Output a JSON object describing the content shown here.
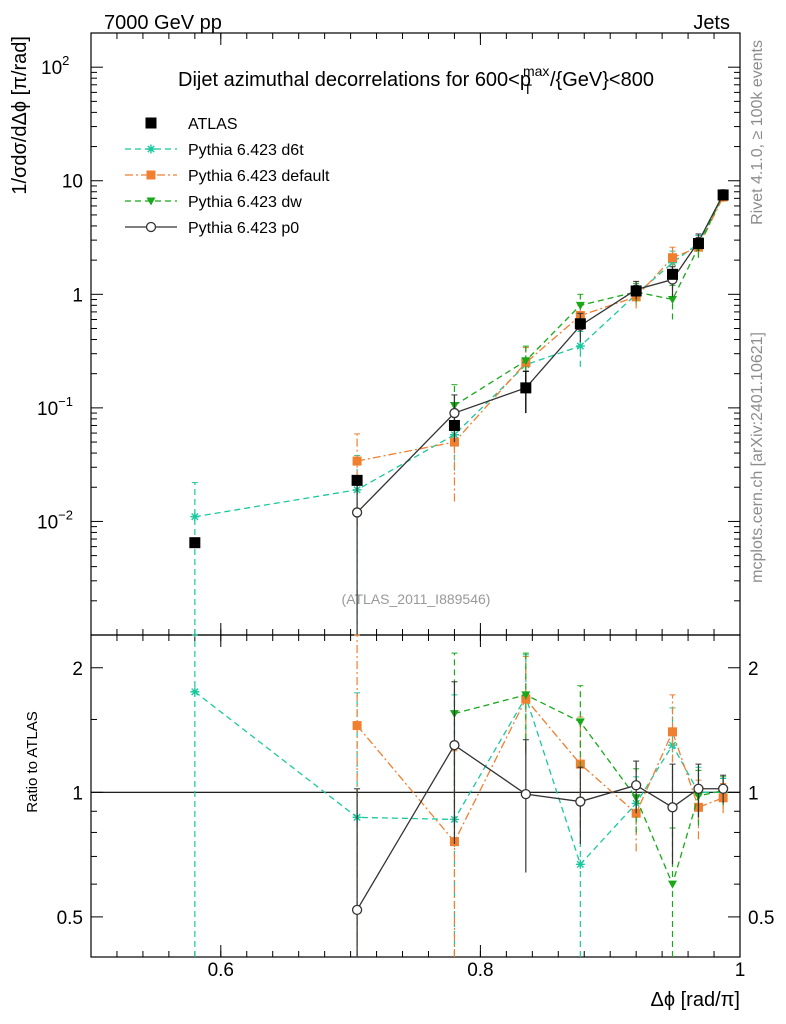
{
  "header": {
    "left": "7000 GeV pp",
    "right": "Jets"
  },
  "side_labels": {
    "rivet": "Rivet 4.1.0, ≥ 100k events",
    "mcplots": "mcplots.cern.ch [arXiv:2401.10621]"
  },
  "chart_data": {
    "type": "line",
    "title": "Dijet azimuthal decorrelations for 600<p_T^max/{GeV}<800",
    "title_parts": {
      "main": "Dijet azimuthal decorrelations for 600<p",
      "sup": "max",
      "sub": "T",
      "tail": "/{GeV}<800"
    },
    "analysis_label": "(ATLAS_2011_I889546)",
    "xlabel": "Δϕ [rad/π]",
    "ylabel": "1/σdσ/dΔϕ [π/rad]",
    "ratio_ylabel": "Ratio to ATLAS",
    "xlim": [
      0.5,
      1.0
    ],
    "ylim": [
      0.001,
      200
    ],
    "yscale": "log",
    "ratio_ylim": [
      0.4,
      2.4
    ],
    "ratio_yscale": "log",
    "x_ticks": [
      {
        "value": 0.6,
        "label": "0.6"
      },
      {
        "value": 0.8,
        "label": "0.8"
      },
      {
        "value": 1.0,
        "label": "1"
      }
    ],
    "y_ticks": [
      {
        "value": 0.01,
        "base": "10",
        "exp": "−2"
      },
      {
        "value": 0.1,
        "base": "10",
        "exp": "−1"
      },
      {
        "value": 1,
        "base": "1",
        "exp": ""
      },
      {
        "value": 10,
        "base": "10",
        "exp": ""
      },
      {
        "value": 100,
        "base": "10",
        "exp": "2"
      }
    ],
    "ratio_ticks": [
      {
        "value": 0.5,
        "label": "0.5"
      },
      {
        "value": 1,
        "label": "1"
      },
      {
        "value": 2,
        "label": "2"
      }
    ],
    "x": [
      0.58,
      0.705,
      0.78,
      0.835,
      0.877,
      0.92,
      0.948,
      0.968,
      0.987
    ],
    "series": [
      {
        "name": "ATLAS",
        "color": "#000000",
        "marker": "square",
        "line": "none",
        "values": [
          0.0065,
          0.023,
          0.07,
          0.15,
          0.55,
          1.07,
          1.5,
          2.8,
          7.5
        ],
        "errors": [
          0,
          0,
          0,
          0.06,
          0,
          0,
          0,
          0,
          0
        ]
      },
      {
        "name": "Pythia 6.423 d6t",
        "color": "#1ac8a0",
        "marker": "star",
        "line": "dash",
        "values": [
          0.011,
          0.019,
          0.058,
          0.24,
          0.35,
          1.0,
          1.9,
          2.8,
          7.4
        ],
        "errors": [
          0.011,
          0.019,
          0.03,
          0.1,
          0.12,
          0.2,
          0.5,
          0.5,
          0.7
        ],
        "ratio": [
          1.75,
          0.87,
          0.86,
          1.7,
          0.67,
          0.94,
          1.3,
          1.0,
          1.0
        ],
        "ratio_errors": [
          1.75,
          0.87,
          0.86,
          0.45,
          0.3,
          0.15,
          0.3,
          0.15,
          0.08
        ]
      },
      {
        "name": "Pythia 6.423 default",
        "color": "#f07f30",
        "marker": "square",
        "line": "dashdot",
        "values": [
          null,
          0.034,
          0.05,
          0.25,
          0.65,
          0.95,
          2.1,
          2.6,
          7.2
        ],
        "errors": [
          null,
          0.025,
          0.035,
          0.09,
          0.15,
          0.2,
          0.5,
          0.5,
          0.7
        ],
        "ratio": [
          null,
          1.45,
          0.76,
          1.68,
          1.17,
          0.89,
          1.4,
          0.92,
          0.97
        ],
        "ratio_errors": [
          null,
          1.2,
          0.5,
          0.45,
          0.35,
          0.17,
          0.32,
          0.15,
          0.08
        ]
      },
      {
        "name": "Pythia 6.423 dw",
        "color": "#18a818",
        "marker": "triangle-down",
        "line": "dash",
        "values": [
          null,
          null,
          0.105,
          0.26,
          0.8,
          1.05,
          0.9,
          2.6,
          7.6
        ],
        "errors": [
          null,
          null,
          0.055,
          0.09,
          0.2,
          0.2,
          0.3,
          0.5,
          0.7
        ],
        "ratio": [
          null,
          null,
          1.55,
          1.72,
          1.48,
          0.97,
          0.6,
          0.98,
          1.01
        ],
        "ratio_errors": [
          null,
          null,
          0.62,
          0.45,
          0.33,
          0.17,
          0.22,
          0.15,
          0.08
        ]
      },
      {
        "name": "Pythia 6.423 p0",
        "color": "#333333",
        "marker": "circle-open",
        "line": "solid",
        "values": [
          null,
          0.012,
          0.09,
          0.15,
          0.53,
          1.1,
          1.35,
          2.9,
          7.6
        ],
        "errors": [
          null,
          0.012,
          0.04,
          0.06,
          0.15,
          0.2,
          0.4,
          0.5,
          0.7
        ],
        "ratio": [
          null,
          0.52,
          1.3,
          0.99,
          0.95,
          1.04,
          0.92,
          1.02,
          1.02
        ],
        "ratio_errors": [
          null,
          0.5,
          0.55,
          0.35,
          0.2,
          0.15,
          0.25,
          0.15,
          0.08
        ]
      }
    ]
  }
}
